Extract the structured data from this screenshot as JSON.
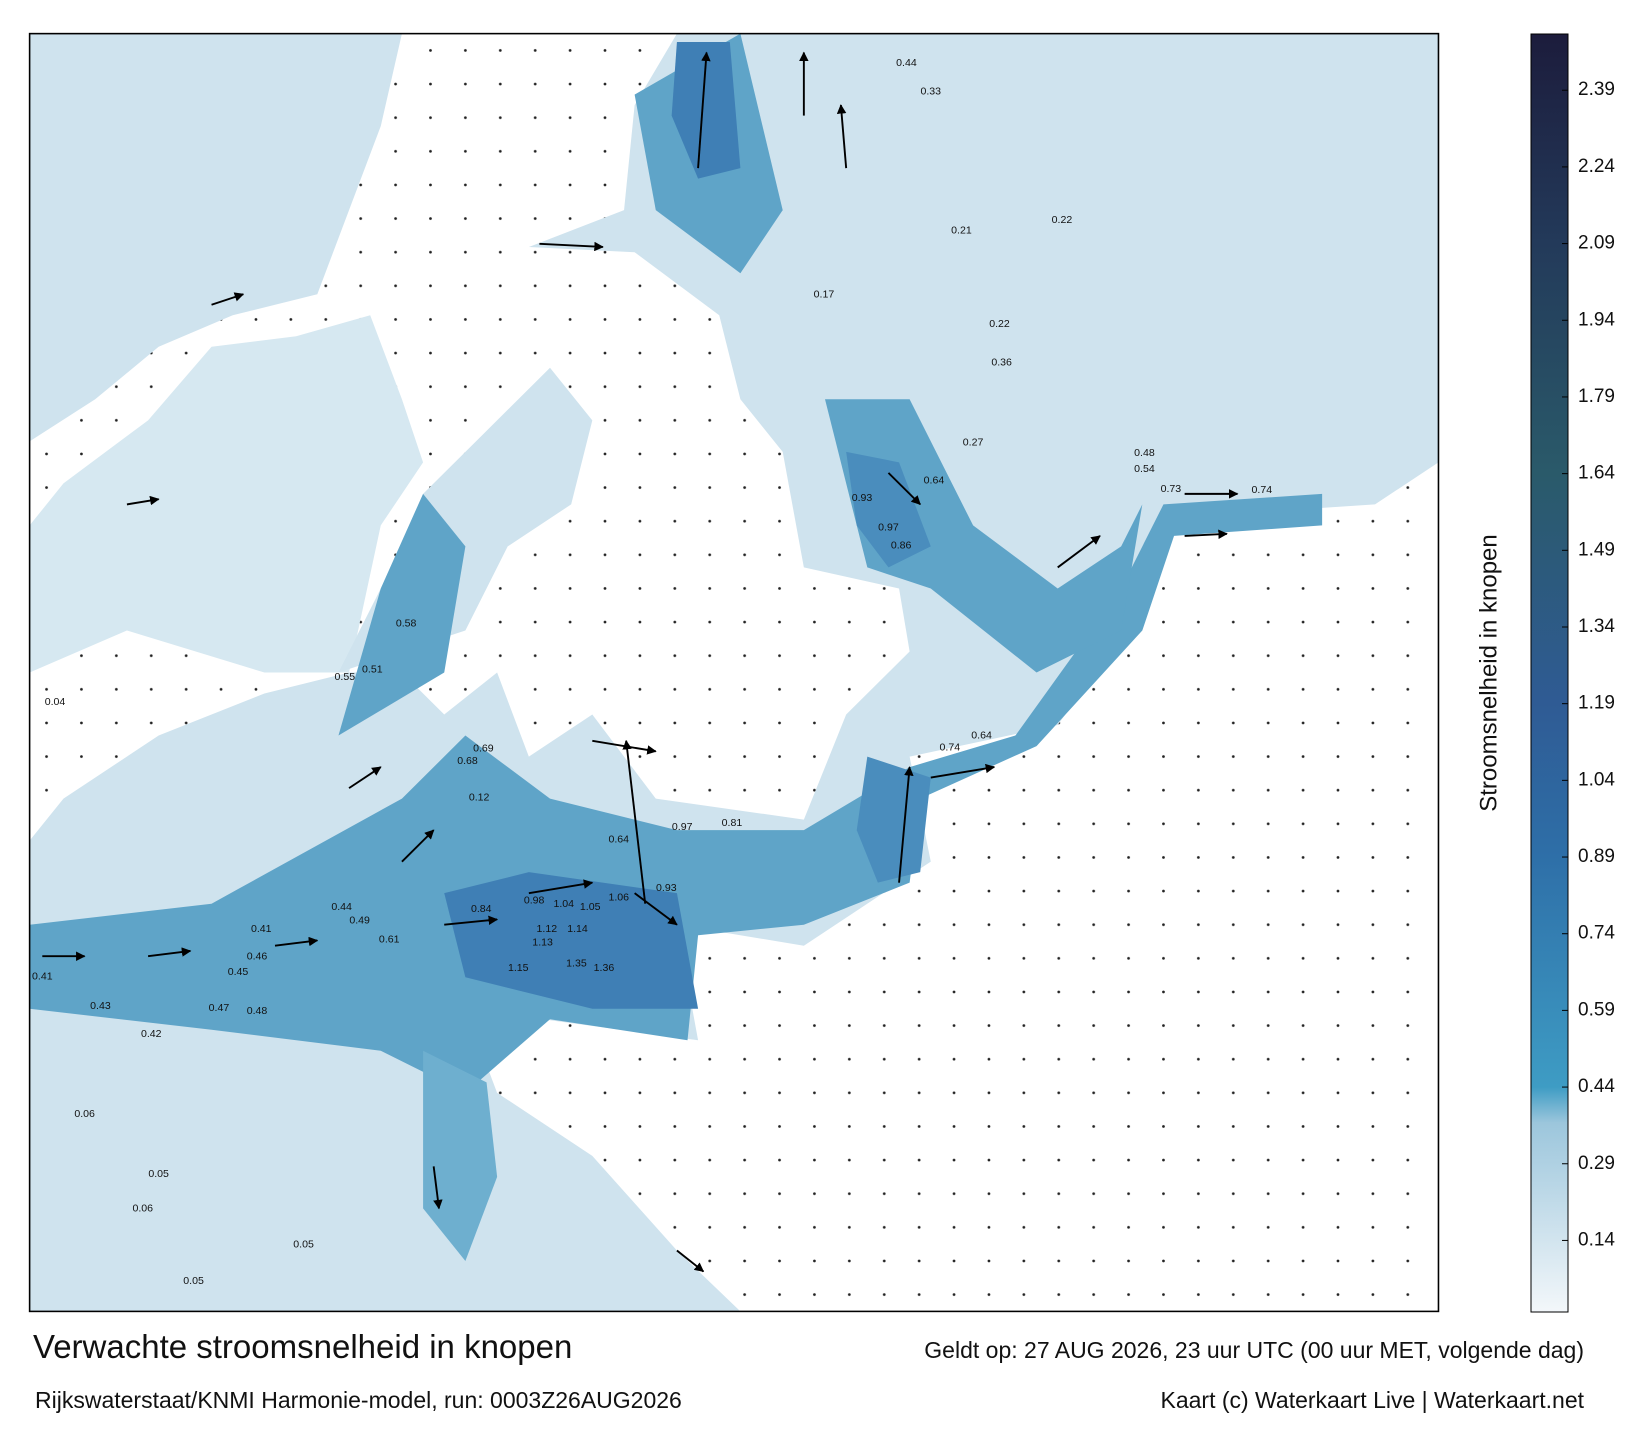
{
  "title": "Verwachte stroomsnelheid in knopen",
  "valid_time": "Geldt op: 27 AUG 2026, 23 uur UTC (00 uur MET, volgende dag)",
  "model_run": "Rijkswaterstaat/KNMI Harmonie-model, run: 0003Z26AUG2026",
  "credit": "Kaart (c) Waterkaart Live | Waterkaart.net",
  "colorbar": {
    "label": "Stroomsnelheid in knopen",
    "clim": [
      0,
      2.5
    ],
    "ticks": [
      0.14,
      0.29,
      0.44,
      0.59,
      0.74,
      0.89,
      1.04,
      1.19,
      1.34,
      1.49,
      1.64,
      1.79,
      1.94,
      2.09,
      2.24,
      2.39
    ],
    "stops": [
      {
        "value": 0,
        "color": "#f3f7fa"
      },
      {
        "value": 0.37,
        "color": "#9cc6dc"
      },
      {
        "value": 0.44,
        "color": "#3e9cc4"
      },
      {
        "value": 0.89,
        "color": "#2e6fa8"
      },
      {
        "value": 1.19,
        "color": "#2f5b94"
      },
      {
        "value": 1.64,
        "color": "#2a5a6a"
      },
      {
        "value": 2.09,
        "color": "#233a5a"
      },
      {
        "value": 2.5,
        "color": "#1c1c3c"
      }
    ]
  },
  "map_labels": [
    0.41,
    0.43,
    0.42,
    0.47,
    0.48,
    0.46,
    0.45,
    0.41,
    0.44,
    0.49,
    0.61,
    0.84,
    0.98,
    1.04,
    1.05,
    1.06,
    1.12,
    1.14,
    1.13,
    1.15,
    1.35,
    1.36,
    0.97,
    0.81,
    0.93,
    0.64,
    0.93,
    0.97,
    0.86,
    0.64,
    0.74,
    0.64,
    0.48,
    0.73,
    0.54,
    0.74,
    0.36,
    0.27,
    0.22,
    0.44,
    0.33,
    0.21,
    0.05,
    0.06,
    0.05,
    0.05,
    0.04,
    0.06,
    0.55,
    0.51,
    0.58,
    0.68,
    0.69,
    0.12,
    0.17,
    0.22
  ]
}
